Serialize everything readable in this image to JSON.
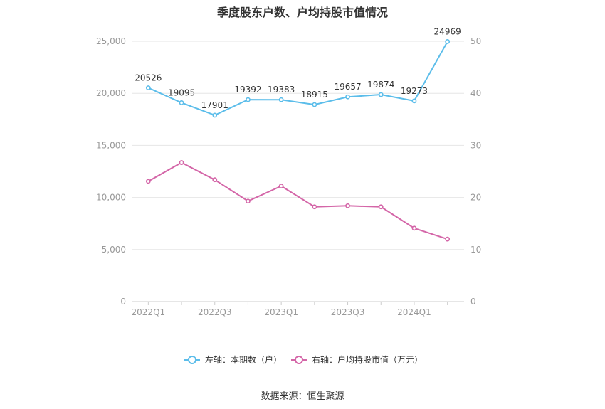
{
  "title": "季度股东户数、户均持股市值情况",
  "source": "数据来源：恒生聚源",
  "colors": {
    "left_series": "#5bbdea",
    "right_series": "#d466a8",
    "grid": "#e6e6e6",
    "axis": "#999999"
  },
  "chart_data": {
    "type": "line",
    "x": [
      "2022Q1",
      "2022Q2",
      "2022Q3",
      "2022Q4",
      "2023Q1",
      "2023Q2",
      "2023Q3",
      "2023Q4",
      "2024Q1",
      "2024Q2"
    ],
    "x_tick_labels": [
      "2022Q1",
      "2022Q3",
      "2023Q1",
      "2023Q3",
      "2024Q1"
    ],
    "y_left": {
      "ylim": [
        0,
        25000
      ],
      "ticks": [
        "0",
        "5,000",
        "10,000",
        "15,000",
        "20,000",
        "25,000"
      ]
    },
    "y_right": {
      "ylim": [
        0,
        50
      ],
      "ticks": [
        "0",
        "10",
        "20",
        "30",
        "40",
        "50"
      ]
    },
    "grid": true,
    "legend_position": "bottom",
    "series": [
      {
        "name": "左轴：本期数（户）",
        "axis": "left",
        "values": [
          20526,
          19095,
          17901,
          19392,
          19383,
          18915,
          19657,
          19874,
          19273,
          24969
        ],
        "labels": [
          "20526",
          "19095",
          "17901",
          "19392",
          "19383",
          "18915",
          "19657",
          "19874",
          "19273",
          "24969"
        ]
      },
      {
        "name": "右轴：户均持股市值（万元）",
        "axis": "right",
        "values": [
          23.1,
          26.7,
          23.4,
          19.3,
          22.2,
          18.2,
          18.4,
          18.2,
          14.1,
          12.0
        ]
      }
    ]
  }
}
